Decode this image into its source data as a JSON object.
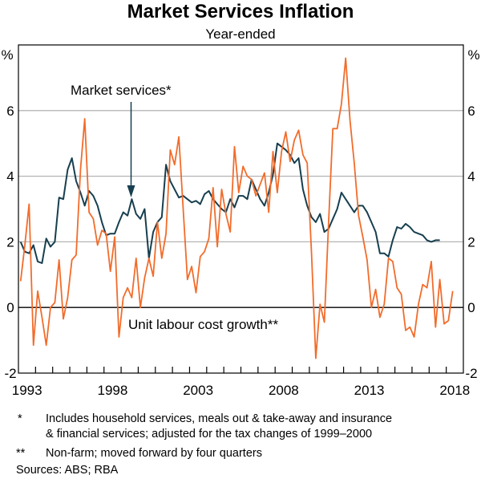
{
  "chart_data": {
    "type": "line",
    "title": "Market Services Inflation",
    "subtitle": "Year-ended",
    "ylabel_left": "%",
    "ylabel_right": "%",
    "ylim": [
      -2,
      8
    ],
    "yticks": [
      -2,
      0,
      2,
      4,
      6
    ],
    "xlim": [
      1993,
      2019
    ],
    "xtick_labels": [
      "1993",
      "1998",
      "2003",
      "2008",
      "2013",
      "2018"
    ],
    "grid": true,
    "x": [
      "1993Q1",
      "1993Q2",
      "1993Q3",
      "1993Q4",
      "1994Q1",
      "1994Q2",
      "1994Q3",
      "1994Q4",
      "1995Q1",
      "1995Q2",
      "1995Q3",
      "1995Q4",
      "1996Q1",
      "1996Q2",
      "1996Q3",
      "1996Q4",
      "1997Q1",
      "1997Q2",
      "1997Q3",
      "1997Q4",
      "1998Q1",
      "1998Q2",
      "1998Q3",
      "1998Q4",
      "1999Q1",
      "1999Q2",
      "1999Q3",
      "1999Q4",
      "2000Q1",
      "2000Q2",
      "2000Q3",
      "2000Q4",
      "2001Q1",
      "2001Q2",
      "2001Q3",
      "2001Q4",
      "2002Q1",
      "2002Q2",
      "2002Q3",
      "2002Q4",
      "2003Q1",
      "2003Q2",
      "2003Q3",
      "2003Q4",
      "2004Q1",
      "2004Q2",
      "2004Q3",
      "2004Q4",
      "2005Q1",
      "2005Q2",
      "2005Q3",
      "2005Q4",
      "2006Q1",
      "2006Q2",
      "2006Q3",
      "2006Q4",
      "2007Q1",
      "2007Q2",
      "2007Q3",
      "2007Q4",
      "2008Q1",
      "2008Q2",
      "2008Q3",
      "2008Q4",
      "2009Q1",
      "2009Q2",
      "2009Q3",
      "2009Q4",
      "2010Q1",
      "2010Q2",
      "2010Q3",
      "2010Q4",
      "2011Q1",
      "2011Q2",
      "2011Q3",
      "2011Q4",
      "2012Q1",
      "2012Q2",
      "2012Q3",
      "2012Q4",
      "2013Q1",
      "2013Q2",
      "2013Q3",
      "2013Q4",
      "2014Q1",
      "2014Q2",
      "2014Q3",
      "2014Q4",
      "2015Q1",
      "2015Q2",
      "2015Q3",
      "2015Q4",
      "2016Q1",
      "2016Q2",
      "2016Q3",
      "2016Q4",
      "2017Q1",
      "2017Q2",
      "2017Q3",
      "2017Q4",
      "2018Q1",
      "2018Q2"
    ],
    "series": [
      {
        "name": "Market services*",
        "color": "#173f4f",
        "values": [
          2.0,
          1.7,
          1.65,
          1.9,
          1.4,
          1.35,
          2.1,
          1.85,
          2.0,
          3.35,
          3.3,
          4.2,
          4.55,
          3.85,
          3.5,
          3.1,
          3.55,
          3.4,
          3.1,
          2.6,
          2.2,
          2.25,
          2.25,
          2.6,
          2.9,
          2.8,
          3.3,
          2.85,
          2.7,
          3.0,
          1.5,
          2.3,
          2.6,
          2.75,
          4.35,
          3.85,
          3.6,
          3.35,
          3.4,
          3.3,
          3.2,
          3.25,
          3.15,
          3.45,
          3.55,
          3.3,
          3.15,
          3.0,
          2.9,
          3.3,
          3.05,
          3.4,
          3.4,
          3.3,
          3.9,
          3.6,
          3.3,
          3.1,
          3.5,
          4.05,
          5.0,
          4.9,
          4.8,
          4.65,
          4.4,
          4.55,
          3.6,
          3.1,
          2.75,
          2.6,
          2.85,
          2.3,
          2.4,
          2.7,
          3.0,
          3.5,
          3.3,
          3.1,
          2.9,
          3.1,
          3.1,
          2.9,
          2.6,
          2.3,
          1.65,
          1.65,
          1.55,
          2.05,
          2.45,
          2.4,
          2.55,
          2.45,
          2.3,
          2.25,
          2.2,
          2.05,
          2.0,
          2.05,
          2.05,
          null,
          null,
          null
        ]
      },
      {
        "name": "Unit labour cost growth**",
        "color": "#f26c2b",
        "values": [
          0.8,
          1.9,
          3.15,
          -1.15,
          0.5,
          -0.3,
          -1.15,
          0.0,
          0.15,
          1.45,
          -0.35,
          0.3,
          1.45,
          1.6,
          4.2,
          5.75,
          2.9,
          2.7,
          1.9,
          2.35,
          2.25,
          1.1,
          2.15,
          -0.9,
          0.3,
          0.6,
          0.3,
          1.5,
          0.0,
          0.9,
          1.5,
          0.95,
          2.6,
          1.5,
          2.25,
          4.8,
          4.35,
          5.2,
          3.0,
          0.85,
          1.25,
          0.45,
          1.55,
          1.7,
          2.1,
          3.65,
          1.85,
          3.6,
          2.85,
          2.3,
          4.9,
          3.5,
          4.3,
          4.0,
          3.9,
          3.4,
          3.75,
          4.1,
          2.9,
          4.75,
          3.5,
          4.75,
          5.35,
          4.45,
          5.1,
          5.4,
          4.65,
          4.4,
          1.65,
          -1.55,
          0.1,
          -0.45,
          2.6,
          5.45,
          5.45,
          6.2,
          7.6,
          5.7,
          4.4,
          2.8,
          2.15,
          1.45,
          0.0,
          0.55,
          -0.3,
          0.1,
          1.5,
          1.4,
          0.6,
          0.4,
          -0.7,
          -0.6,
          -0.9,
          0.1,
          0.7,
          0.6,
          1.4,
          -0.6,
          0.85,
          -0.5,
          -0.4,
          0.5
        ]
      }
    ],
    "notes": [
      {
        "marker": "*",
        "lines": [
          "Includes household services, meals out & take-away and insurance",
          "& financial services; adjusted for the tax changes of 1999–2000"
        ]
      },
      {
        "marker": "**",
        "lines": [
          "Non-farm; moved forward by four quarters"
        ]
      }
    ],
    "sources": "Sources: ABS; RBA"
  }
}
